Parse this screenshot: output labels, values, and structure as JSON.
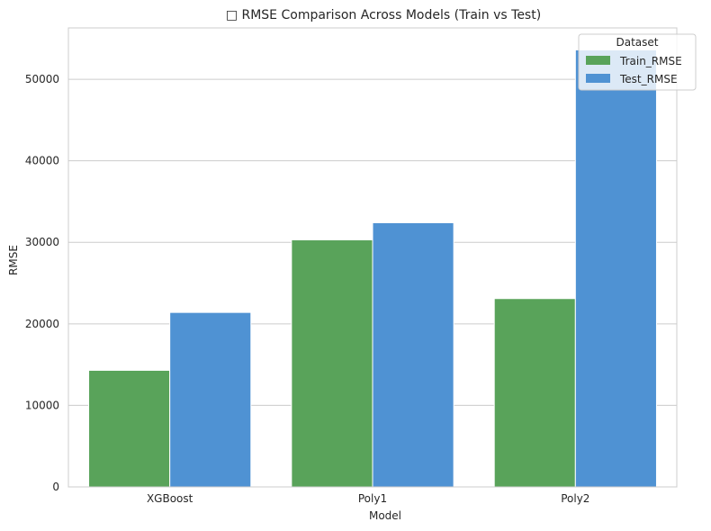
{
  "chart_data": {
    "type": "bar",
    "title": "□ RMSE Comparison Across Models (Train vs Test)",
    "xlabel": "Model",
    "ylabel": "RMSE",
    "categories": [
      "XGBoost",
      "Poly1",
      "Poly2"
    ],
    "series": [
      {
        "name": "Train_RMSE",
        "values": [
          14300,
          30300,
          23100
        ],
        "color": "#59a35a"
      },
      {
        "name": "Test_RMSE",
        "values": [
          21400,
          32400,
          53600
        ],
        "color": "#4f92d3"
      }
    ],
    "ylim": [
      0,
      56300
    ],
    "yticks": [
      0,
      10000,
      20000,
      30000,
      40000,
      50000
    ],
    "grid": true,
    "legend": {
      "title": "Dataset",
      "placement": "top-right"
    }
  }
}
